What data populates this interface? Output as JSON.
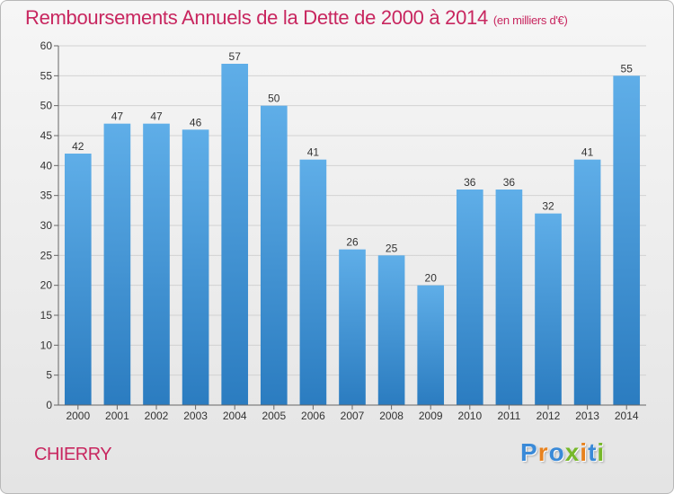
{
  "chart_data": {
    "type": "bar",
    "title": "Remboursements Annuels de la Dette de 2000 à 2014",
    "unit_note": "(en milliers d'€)",
    "categories": [
      "2000",
      "2001",
      "2002",
      "2003",
      "2004",
      "2005",
      "2006",
      "2007",
      "2008",
      "2009",
      "2010",
      "2011",
      "2012",
      "2013",
      "2014"
    ],
    "values": [
      42,
      47,
      47,
      46,
      57,
      50,
      41,
      26,
      25,
      20,
      36,
      36,
      32,
      41,
      55
    ],
    "ylim": [
      0,
      60
    ],
    "yticks": [
      0,
      5,
      10,
      15,
      20,
      25,
      30,
      35,
      40,
      45,
      50,
      55,
      60
    ],
    "xlabel": "",
    "ylabel": "",
    "grid": true,
    "colors": {
      "bar_top": "#5faee8",
      "bar_bottom": "#2b7cc0",
      "title": "#c8265f"
    }
  },
  "footer": {
    "commune": "CHIERRY",
    "logo_letters": [
      "P",
      "r",
      "o",
      "x",
      "i",
      "t",
      "i"
    ],
    "logo_colors": [
      "#3a8ad8",
      "#e8821e",
      "#3a8ad8",
      "#77b82a",
      "#e8821e",
      "#3a8ad8",
      "#77b82a"
    ]
  }
}
